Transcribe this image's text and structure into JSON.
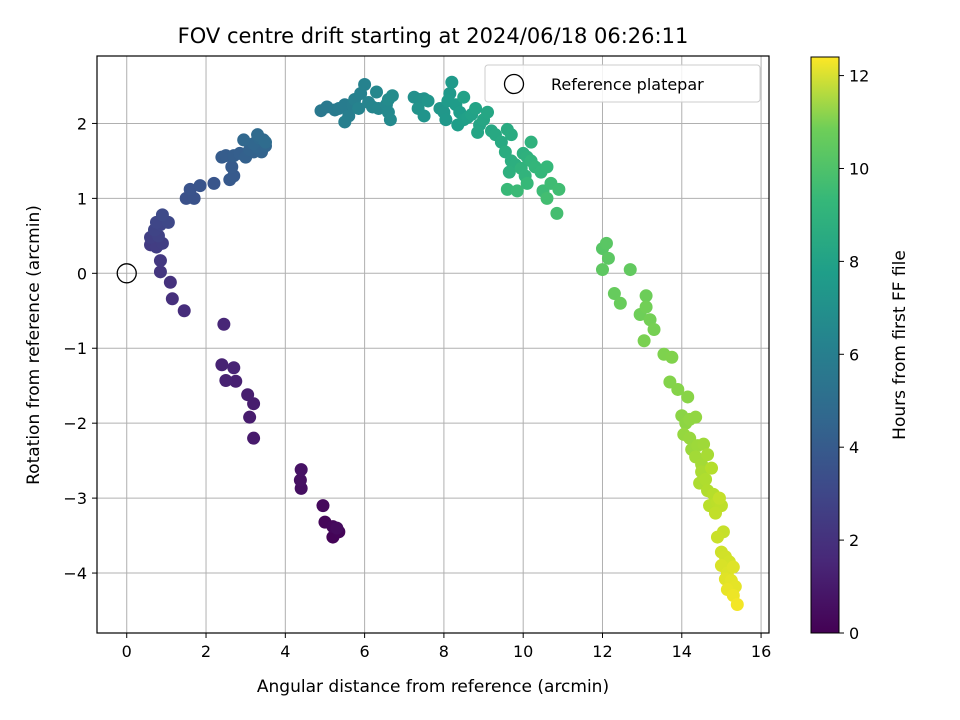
{
  "chart_data": {
    "type": "scatter",
    "title": "FOV centre drift starting at 2024/06/18 06:26:11",
    "xlabel": "Angular distance from reference (arcmin)",
    "ylabel": "Rotation from reference (arcmin)",
    "xlim": [
      -0.75,
      16.2
    ],
    "ylim": [
      -4.8,
      2.9
    ],
    "xticks": [
      0,
      2,
      4,
      6,
      8,
      10,
      12,
      14,
      16
    ],
    "xtick_labels": [
      "0",
      "2",
      "4",
      "6",
      "8",
      "10",
      "12",
      "14",
      "16"
    ],
    "yticks": [
      -4,
      -3,
      -2,
      -1,
      0,
      1,
      2
    ],
    "ytick_labels": [
      "−4",
      "−3",
      "−2",
      "−1",
      "0",
      "1",
      "2"
    ],
    "grid": true,
    "colormap": "viridis",
    "colorbar": {
      "label": "Hours from first FF file",
      "range": [
        0,
        12.4
      ],
      "ticks": [
        0,
        2,
        4,
        6,
        8,
        10,
        12
      ],
      "tick_labels": [
        "0",
        "2",
        "4",
        "6",
        "8",
        "10",
        "12"
      ]
    },
    "legend": {
      "placement": "top-right",
      "entries": [
        {
          "label": "Reference platepar",
          "marker": "open-circle"
        }
      ]
    },
    "reference": {
      "x": 0,
      "y": 0
    },
    "points": [
      {
        "x": 5.2,
        "y": -3.52,
        "t": 0.1
      },
      {
        "x": 5.35,
        "y": -3.45,
        "t": 0.15
      },
      {
        "x": 5.0,
        "y": -3.32,
        "t": 0.2
      },
      {
        "x": 5.2,
        "y": -3.38,
        "t": 0.25
      },
      {
        "x": 4.95,
        "y": -3.1,
        "t": 0.3
      },
      {
        "x": 5.3,
        "y": -3.4,
        "t": 0.35
      },
      {
        "x": 4.4,
        "y": -2.87,
        "t": 0.5
      },
      {
        "x": 4.38,
        "y": -2.76,
        "t": 0.55
      },
      {
        "x": 4.4,
        "y": -2.62,
        "t": 0.6
      },
      {
        "x": 3.2,
        "y": -2.2,
        "t": 0.9
      },
      {
        "x": 3.1,
        "y": -1.92,
        "t": 0.95
      },
      {
        "x": 3.2,
        "y": -1.74,
        "t": 1.0
      },
      {
        "x": 3.05,
        "y": -1.62,
        "t": 1.05
      },
      {
        "x": 2.75,
        "y": -1.44,
        "t": 1.1
      },
      {
        "x": 2.5,
        "y": -1.43,
        "t": 1.15
      },
      {
        "x": 2.4,
        "y": -1.22,
        "t": 1.2
      },
      {
        "x": 2.7,
        "y": -1.26,
        "t": 1.25
      },
      {
        "x": 2.45,
        "y": -0.68,
        "t": 1.35
      },
      {
        "x": 1.45,
        "y": -0.5,
        "t": 1.6
      },
      {
        "x": 1.15,
        "y": -0.34,
        "t": 1.7
      },
      {
        "x": 1.1,
        "y": -0.12,
        "t": 1.8
      },
      {
        "x": 0.85,
        "y": 0.02,
        "t": 1.95
      },
      {
        "x": 0.85,
        "y": 0.17,
        "t": 2.05
      },
      {
        "x": 0.6,
        "y": 0.38,
        "t": 2.15
      },
      {
        "x": 0.75,
        "y": 0.35,
        "t": 2.25
      },
      {
        "x": 0.9,
        "y": 0.4,
        "t": 2.3
      },
      {
        "x": 0.6,
        "y": 0.48,
        "t": 2.35
      },
      {
        "x": 0.8,
        "y": 0.5,
        "t": 2.45
      },
      {
        "x": 0.7,
        "y": 0.58,
        "t": 2.55
      },
      {
        "x": 0.85,
        "y": 0.65,
        "t": 2.6
      },
      {
        "x": 0.75,
        "y": 0.68,
        "t": 2.65
      },
      {
        "x": 1.05,
        "y": 0.68,
        "t": 2.7
      },
      {
        "x": 0.9,
        "y": 0.78,
        "t": 2.8
      },
      {
        "x": 1.5,
        "y": 1.0,
        "t": 3.1
      },
      {
        "x": 1.7,
        "y": 1.0,
        "t": 3.15
      },
      {
        "x": 1.6,
        "y": 1.12,
        "t": 3.2
      },
      {
        "x": 1.85,
        "y": 1.17,
        "t": 3.25
      },
      {
        "x": 2.2,
        "y": 1.2,
        "t": 3.3
      },
      {
        "x": 2.6,
        "y": 1.25,
        "t": 3.45
      },
      {
        "x": 2.7,
        "y": 1.3,
        "t": 3.5
      },
      {
        "x": 2.65,
        "y": 1.42,
        "t": 3.55
      },
      {
        "x": 2.4,
        "y": 1.55,
        "t": 3.6
      },
      {
        "x": 2.5,
        "y": 1.57,
        "t": 3.65
      },
      {
        "x": 2.7,
        "y": 1.57,
        "t": 3.7
      },
      {
        "x": 2.85,
        "y": 1.6,
        "t": 3.75
      },
      {
        "x": 3.0,
        "y": 1.55,
        "t": 3.8
      },
      {
        "x": 3.2,
        "y": 1.62,
        "t": 3.85
      },
      {
        "x": 3.1,
        "y": 1.65,
        "t": 3.9
      },
      {
        "x": 3.4,
        "y": 1.62,
        "t": 3.95
      },
      {
        "x": 3.3,
        "y": 1.68,
        "t": 4.0
      },
      {
        "x": 3.5,
        "y": 1.7,
        "t": 4.05
      },
      {
        "x": 3.2,
        "y": 1.73,
        "t": 4.1
      },
      {
        "x": 2.95,
        "y": 1.78,
        "t": 4.15
      },
      {
        "x": 3.35,
        "y": 1.8,
        "t": 4.2
      },
      {
        "x": 3.45,
        "y": 1.78,
        "t": 4.25
      },
      {
        "x": 3.3,
        "y": 1.85,
        "t": 4.3
      },
      {
        "x": 3.5,
        "y": 1.75,
        "t": 4.35
      },
      {
        "x": 4.9,
        "y": 2.17,
        "t": 5.0
      },
      {
        "x": 5.05,
        "y": 2.22,
        "t": 5.05
      },
      {
        "x": 5.25,
        "y": 2.18,
        "t": 5.1
      },
      {
        "x": 5.35,
        "y": 2.2,
        "t": 5.15
      },
      {
        "x": 5.5,
        "y": 2.25,
        "t": 5.2
      },
      {
        "x": 5.7,
        "y": 2.25,
        "t": 5.25
      },
      {
        "x": 5.6,
        "y": 2.1,
        "t": 5.3
      },
      {
        "x": 5.5,
        "y": 2.02,
        "t": 5.35
      },
      {
        "x": 5.75,
        "y": 2.32,
        "t": 5.4
      },
      {
        "x": 5.9,
        "y": 2.4,
        "t": 5.45
      },
      {
        "x": 6.0,
        "y": 2.52,
        "t": 5.5
      },
      {
        "x": 5.85,
        "y": 2.2,
        "t": 5.55
      },
      {
        "x": 6.1,
        "y": 2.28,
        "t": 5.6
      },
      {
        "x": 6.2,
        "y": 2.22,
        "t": 5.65
      },
      {
        "x": 6.35,
        "y": 2.2,
        "t": 5.7
      },
      {
        "x": 6.3,
        "y": 2.42,
        "t": 5.75
      },
      {
        "x": 6.55,
        "y": 2.25,
        "t": 5.8
      },
      {
        "x": 6.6,
        "y": 2.15,
        "t": 5.85
      },
      {
        "x": 6.65,
        "y": 2.05,
        "t": 5.9
      },
      {
        "x": 6.6,
        "y": 2.32,
        "t": 5.95
      },
      {
        "x": 6.7,
        "y": 2.37,
        "t": 6.0
      },
      {
        "x": 7.25,
        "y": 2.35,
        "t": 6.2
      },
      {
        "x": 7.4,
        "y": 2.32,
        "t": 6.25
      },
      {
        "x": 7.5,
        "y": 2.33,
        "t": 6.3
      },
      {
        "x": 7.35,
        "y": 2.2,
        "t": 6.35
      },
      {
        "x": 7.5,
        "y": 2.1,
        "t": 6.4
      },
      {
        "x": 7.6,
        "y": 2.3,
        "t": 6.45
      },
      {
        "x": 7.9,
        "y": 2.2,
        "t": 6.5
      },
      {
        "x": 8.0,
        "y": 2.15,
        "t": 6.55
      },
      {
        "x": 8.05,
        "y": 2.05,
        "t": 6.6
      },
      {
        "x": 8.15,
        "y": 2.4,
        "t": 6.65
      },
      {
        "x": 8.2,
        "y": 2.55,
        "t": 6.7
      },
      {
        "x": 8.1,
        "y": 2.3,
        "t": 6.75
      },
      {
        "x": 8.3,
        "y": 2.25,
        "t": 6.8
      },
      {
        "x": 8.4,
        "y": 2.15,
        "t": 6.85
      },
      {
        "x": 8.35,
        "y": 1.98,
        "t": 6.9
      },
      {
        "x": 8.5,
        "y": 2.05,
        "t": 6.95
      },
      {
        "x": 8.6,
        "y": 2.08,
        "t": 7.0
      },
      {
        "x": 8.5,
        "y": 2.35,
        "t": 7.05
      },
      {
        "x": 8.7,
        "y": 2.12,
        "t": 7.1
      },
      {
        "x": 8.8,
        "y": 2.2,
        "t": 7.15
      },
      {
        "x": 8.9,
        "y": 1.98,
        "t": 7.2
      },
      {
        "x": 8.85,
        "y": 1.88,
        "t": 7.25
      },
      {
        "x": 9.0,
        "y": 2.05,
        "t": 7.3
      },
      {
        "x": 9.1,
        "y": 2.15,
        "t": 7.35
      },
      {
        "x": 9.2,
        "y": 1.9,
        "t": 7.4
      },
      {
        "x": 9.3,
        "y": 1.85,
        "t": 7.45
      },
      {
        "x": 9.45,
        "y": 1.75,
        "t": 7.5
      },
      {
        "x": 9.6,
        "y": 1.92,
        "t": 7.55
      },
      {
        "x": 9.7,
        "y": 1.85,
        "t": 7.6
      },
      {
        "x": 9.55,
        "y": 1.62,
        "t": 7.65
      },
      {
        "x": 9.7,
        "y": 1.5,
        "t": 7.7
      },
      {
        "x": 9.8,
        "y": 1.45,
        "t": 7.75
      },
      {
        "x": 9.65,
        "y": 1.35,
        "t": 7.8
      },
      {
        "x": 10.0,
        "y": 1.6,
        "t": 7.85
      },
      {
        "x": 10.1,
        "y": 1.55,
        "t": 7.9
      },
      {
        "x": 10.2,
        "y": 1.75,
        "t": 7.95
      },
      {
        "x": 9.95,
        "y": 1.4,
        "t": 8.0
      },
      {
        "x": 10.05,
        "y": 1.3,
        "t": 8.05
      },
      {
        "x": 10.2,
        "y": 1.5,
        "t": 8.1
      },
      {
        "x": 10.3,
        "y": 1.42,
        "t": 8.15
      },
      {
        "x": 10.45,
        "y": 1.35,
        "t": 8.2
      },
      {
        "x": 10.6,
        "y": 1.42,
        "t": 8.25
      },
      {
        "x": 10.1,
        "y": 1.2,
        "t": 8.3
      },
      {
        "x": 9.6,
        "y": 1.12,
        "t": 8.35
      },
      {
        "x": 9.85,
        "y": 1.1,
        "t": 8.4
      },
      {
        "x": 10.5,
        "y": 1.1,
        "t": 8.45
      },
      {
        "x": 10.7,
        "y": 1.2,
        "t": 8.5
      },
      {
        "x": 10.9,
        "y": 1.12,
        "t": 8.55
      },
      {
        "x": 10.6,
        "y": 1.0,
        "t": 8.6
      },
      {
        "x": 10.85,
        "y": 0.8,
        "t": 8.65
      },
      {
        "x": 12.0,
        "y": 0.33,
        "t": 9.1
      },
      {
        "x": 12.1,
        "y": 0.4,
        "t": 9.15
      },
      {
        "x": 12.15,
        "y": 0.2,
        "t": 9.2
      },
      {
        "x": 12.0,
        "y": 0.05,
        "t": 9.25
      },
      {
        "x": 12.7,
        "y": 0.05,
        "t": 9.35
      },
      {
        "x": 12.3,
        "y": -0.27,
        "t": 9.45
      },
      {
        "x": 12.45,
        "y": -0.4,
        "t": 9.5
      },
      {
        "x": 13.1,
        "y": -0.3,
        "t": 9.6
      },
      {
        "x": 12.95,
        "y": -0.55,
        "t": 9.65
      },
      {
        "x": 13.1,
        "y": -0.45,
        "t": 9.7
      },
      {
        "x": 13.2,
        "y": -0.62,
        "t": 9.75
      },
      {
        "x": 13.3,
        "y": -0.75,
        "t": 9.8
      },
      {
        "x": 13.05,
        "y": -0.9,
        "t": 9.85
      },
      {
        "x": 13.55,
        "y": -1.08,
        "t": 9.95
      },
      {
        "x": 13.75,
        "y": -1.12,
        "t": 10.0
      },
      {
        "x": 13.7,
        "y": -1.45,
        "t": 10.05
      },
      {
        "x": 13.9,
        "y": -1.55,
        "t": 10.1
      },
      {
        "x": 14.15,
        "y": -1.65,
        "t": 10.15
      },
      {
        "x": 14.0,
        "y": -1.9,
        "t": 10.2
      },
      {
        "x": 14.1,
        "y": -2.0,
        "t": 10.25
      },
      {
        "x": 14.2,
        "y": -1.95,
        "t": 10.3
      },
      {
        "x": 14.35,
        "y": -1.92,
        "t": 10.35
      },
      {
        "x": 14.05,
        "y": -2.15,
        "t": 10.4
      },
      {
        "x": 14.2,
        "y": -2.2,
        "t": 10.45
      },
      {
        "x": 14.25,
        "y": -2.35,
        "t": 10.5
      },
      {
        "x": 14.4,
        "y": -2.3,
        "t": 10.55
      },
      {
        "x": 14.55,
        "y": -2.28,
        "t": 10.6
      },
      {
        "x": 14.35,
        "y": -2.45,
        "t": 10.65
      },
      {
        "x": 14.5,
        "y": -2.55,
        "t": 10.7
      },
      {
        "x": 14.65,
        "y": -2.42,
        "t": 10.75
      },
      {
        "x": 14.5,
        "y": -2.65,
        "t": 10.8
      },
      {
        "x": 14.45,
        "y": -2.8,
        "t": 10.85
      },
      {
        "x": 14.6,
        "y": -2.75,
        "t": 10.9
      },
      {
        "x": 14.65,
        "y": -2.9,
        "t": 10.95
      },
      {
        "x": 14.75,
        "y": -2.6,
        "t": 11.0
      },
      {
        "x": 14.8,
        "y": -2.95,
        "t": 11.05
      },
      {
        "x": 14.7,
        "y": -3.1,
        "t": 11.1
      },
      {
        "x": 14.9,
        "y": -3.05,
        "t": 11.15
      },
      {
        "x": 15.0,
        "y": -3.1,
        "t": 11.2
      },
      {
        "x": 14.85,
        "y": -3.2,
        "t": 11.25
      },
      {
        "x": 14.95,
        "y": -3.0,
        "t": 11.3
      },
      {
        "x": 15.05,
        "y": -3.45,
        "t": 11.35
      },
      {
        "x": 14.9,
        "y": -3.52,
        "t": 11.4
      },
      {
        "x": 15.0,
        "y": -3.72,
        "t": 11.5
      },
      {
        "x": 15.1,
        "y": -3.78,
        "t": 11.55
      },
      {
        "x": 15.2,
        "y": -3.85,
        "t": 11.6
      },
      {
        "x": 15.0,
        "y": -3.9,
        "t": 11.7
      },
      {
        "x": 15.15,
        "y": -4.0,
        "t": 11.75
      },
      {
        "x": 15.3,
        "y": -3.92,
        "t": 11.8
      },
      {
        "x": 15.1,
        "y": -4.08,
        "t": 11.85
      },
      {
        "x": 15.25,
        "y": -4.1,
        "t": 11.9
      },
      {
        "x": 15.35,
        "y": -4.18,
        "t": 11.95
      },
      {
        "x": 15.15,
        "y": -4.22,
        "t": 12.0
      },
      {
        "x": 15.3,
        "y": -4.3,
        "t": 12.1
      },
      {
        "x": 15.4,
        "y": -4.42,
        "t": 12.2
      }
    ]
  }
}
